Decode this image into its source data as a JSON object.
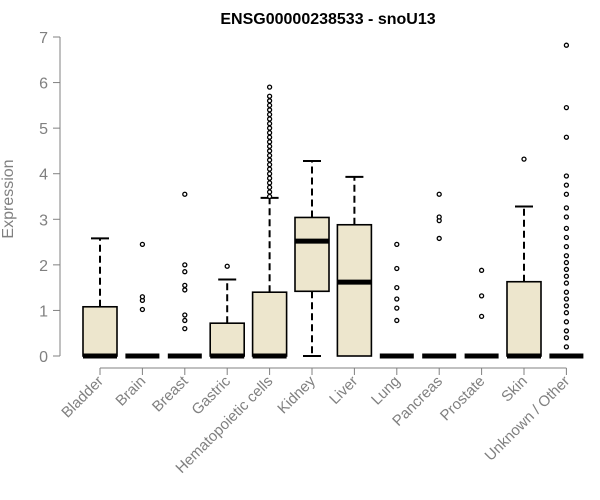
{
  "chart_data": {
    "type": "boxplot",
    "title": "ENSG00000238533 - snoU13",
    "xlabel": "",
    "ylabel": "Expression",
    "ylim": [
      0,
      7
    ],
    "yticks": [
      "0",
      "1",
      "2",
      "3",
      "4",
      "5",
      "6",
      "7"
    ],
    "grid": false,
    "legend": "none",
    "box_color": "#ede6cd",
    "categories": [
      "Bladder",
      "Brain",
      "Breast",
      "Gastric",
      "Hematopoietic cells",
      "Kidney",
      "Liver",
      "Lung",
      "Pancreas",
      "Prostate",
      "Skin",
      "Unknown / Other"
    ],
    "boxes": [
      {
        "category": "Bladder",
        "min": 0,
        "q1": 0,
        "median": 0,
        "q3": 1.08,
        "max": 2.58,
        "outliers": []
      },
      {
        "category": "Brain",
        "min": 0,
        "q1": 0,
        "median": 0,
        "q3": 0,
        "max": 0,
        "outliers": [
          1.02,
          1.22,
          1.3,
          2.45
        ]
      },
      {
        "category": "Breast",
        "min": 0,
        "q1": 0,
        "median": 0,
        "q3": 0,
        "max": 0,
        "outliers": [
          0.6,
          0.78,
          0.9,
          1.45,
          1.55,
          1.85,
          2.0,
          3.55
        ]
      },
      {
        "category": "Gastric",
        "min": 0,
        "q1": 0,
        "median": 0,
        "q3": 0.72,
        "max": 1.68,
        "outliers": [
          1.97
        ]
      },
      {
        "category": "Hematopoietic cells",
        "min": 0,
        "q1": 0,
        "median": 0,
        "q3": 1.4,
        "max": 3.47,
        "outliers": [
          3.5,
          3.6,
          3.7,
          3.8,
          3.9,
          4.0,
          4.1,
          4.2,
          4.3,
          4.4,
          4.5,
          4.6,
          4.7,
          4.8,
          4.9,
          5.0,
          5.1,
          5.2,
          5.3,
          5.4,
          5.5,
          5.6,
          5.7,
          5.9
        ]
      },
      {
        "category": "Kidney",
        "min": 0,
        "q1": 1.42,
        "median": 2.52,
        "q3": 3.04,
        "max": 4.28,
        "outliers": []
      },
      {
        "category": "Liver",
        "min": 0,
        "q1": 0,
        "median": 1.62,
        "q3": 2.88,
        "max": 3.93,
        "outliers": []
      },
      {
        "category": "Lung",
        "min": 0,
        "q1": 0,
        "median": 0,
        "q3": 0,
        "max": 0,
        "outliers": [
          0.78,
          1.05,
          1.25,
          1.5,
          1.92,
          2.45
        ]
      },
      {
        "category": "Pancreas",
        "min": 0,
        "q1": 0,
        "median": 0,
        "q3": 0,
        "max": 0,
        "outliers": [
          2.58,
          2.97,
          3.05,
          3.55
        ]
      },
      {
        "category": "Prostate",
        "min": 0,
        "q1": 0,
        "median": 0,
        "q3": 0,
        "max": 0,
        "outliers": [
          0.87,
          1.32,
          1.88
        ]
      },
      {
        "category": "Skin",
        "min": 0,
        "q1": 0,
        "median": 0,
        "q3": 1.63,
        "max": 3.28,
        "outliers": [
          4.32
        ]
      },
      {
        "category": "Unknown / Other",
        "min": 0,
        "q1": 0,
        "median": 0,
        "q3": 0,
        "max": 0,
        "outliers": [
          0.2,
          0.4,
          0.55,
          0.75,
          0.95,
          1.1,
          1.25,
          1.4,
          1.6,
          1.75,
          1.9,
          2.05,
          2.2,
          2.4,
          2.6,
          2.8,
          3.05,
          3.25,
          3.55,
          3.75,
          3.95,
          4.8,
          5.45,
          6.82
        ]
      }
    ]
  }
}
